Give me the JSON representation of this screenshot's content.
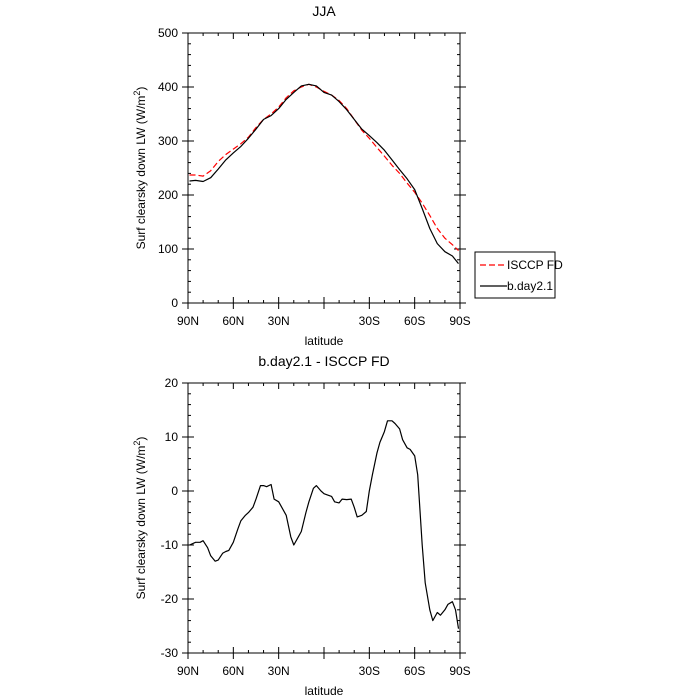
{
  "chart_data": [
    {
      "type": "line",
      "title": "JJA",
      "xlabel": "latitude",
      "ylabel_main": "Surf clearsky down LW (W/m",
      "ylabel_sup": "2",
      "ylabel_end": ")",
      "xlim": [
        90,
        -90
      ],
      "ylim": [
        0,
        500
      ],
      "xticks": [
        {
          "value": 90,
          "label": "90N"
        },
        {
          "value": 60,
          "label": "60N"
        },
        {
          "value": 30,
          "label": "30N"
        },
        {
          "value": 0,
          "label": ""
        },
        {
          "value": -30,
          "label": "30S"
        },
        {
          "value": -60,
          "label": "60S"
        },
        {
          "value": -90,
          "label": "90S"
        }
      ],
      "yticks": [
        {
          "value": 0,
          "label": "0"
        },
        {
          "value": 100,
          "label": "100"
        },
        {
          "value": 200,
          "label": "200"
        },
        {
          "value": 300,
          "label": "300"
        },
        {
          "value": 400,
          "label": "400"
        },
        {
          "value": 500,
          "label": "500"
        }
      ],
      "legend": {
        "position": "right",
        "entries": [
          {
            "label": "ISCCP FD",
            "color": "#ff0000",
            "dash": "dashed"
          },
          {
            "label": "b.day2.1",
            "color": "#000000",
            "dash": "solid"
          }
        ]
      },
      "series": [
        {
          "name": "ISCCP FD",
          "color": "#ff0000",
          "dash": "dashed",
          "x": [
            89,
            85,
            80,
            75,
            70,
            65,
            60,
            55,
            50,
            45,
            40,
            35,
            30,
            25,
            20,
            15,
            10,
            5,
            0,
            -5,
            -10,
            -15,
            -20,
            -25,
            -30,
            -35,
            -40,
            -45,
            -50,
            -55,
            -60,
            -65,
            -70,
            -75,
            -80,
            -85,
            -89
          ],
          "y": [
            237,
            237,
            235,
            245,
            262,
            275,
            285,
            295,
            307,
            325,
            340,
            350,
            363,
            380,
            393,
            400,
            405,
            400,
            392,
            385,
            375,
            360,
            340,
            320,
            305,
            288,
            272,
            255,
            240,
            222,
            205,
            185,
            162,
            138,
            120,
            108,
            97
          ]
        },
        {
          "name": "b.day2.1",
          "color": "#000000",
          "dash": "solid",
          "x": [
            89,
            85,
            80,
            75,
            70,
            65,
            60,
            55,
            50,
            45,
            40,
            35,
            30,
            25,
            20,
            15,
            10,
            5,
            0,
            -5,
            -10,
            -15,
            -20,
            -25,
            -30,
            -35,
            -40,
            -45,
            -50,
            -55,
            -60,
            -65,
            -70,
            -75,
            -80,
            -85,
            -89
          ],
          "y": [
            226,
            227,
            225,
            232,
            248,
            265,
            278,
            290,
            305,
            322,
            340,
            347,
            360,
            377,
            390,
            402,
            405,
            402,
            390,
            385,
            373,
            358,
            340,
            322,
            310,
            297,
            283,
            265,
            247,
            230,
            210,
            175,
            138,
            110,
            95,
            87,
            73
          ]
        }
      ]
    },
    {
      "type": "line",
      "title": "b.day2.1 - ISCCP FD",
      "xlabel": "latitude",
      "ylabel_main": "Surf clearsky down LW (W/m",
      "ylabel_sup": "2",
      "ylabel_end": ")",
      "xlim": [
        90,
        -90
      ],
      "ylim": [
        -30,
        20
      ],
      "xticks": [
        {
          "value": 90,
          "label": "90N"
        },
        {
          "value": 60,
          "label": "60N"
        },
        {
          "value": 30,
          "label": "30N"
        },
        {
          "value": 0,
          "label": ""
        },
        {
          "value": -30,
          "label": "30S"
        },
        {
          "value": -60,
          "label": "60S"
        },
        {
          "value": -90,
          "label": "90S"
        }
      ],
      "yticks": [
        {
          "value": -30,
          "label": "-30"
        },
        {
          "value": -20,
          "label": "-20"
        },
        {
          "value": -10,
          "label": "-10"
        },
        {
          "value": 0,
          "label": "0"
        },
        {
          "value": 10,
          "label": "10"
        },
        {
          "value": 20,
          "label": "20"
        }
      ],
      "series": [
        {
          "name": "",
          "color": "#000000",
          "dash": "solid",
          "x": [
            89,
            85,
            82,
            80,
            77,
            75,
            72,
            70,
            67,
            65,
            63,
            60,
            57,
            55,
            52,
            50,
            47,
            45,
            42,
            40,
            38,
            35,
            33,
            30,
            28,
            25,
            22,
            20,
            17,
            15,
            12,
            10,
            7,
            5,
            2,
            0,
            -2,
            -5,
            -7,
            -10,
            -12,
            -15,
            -18,
            -20,
            -22,
            -25,
            -28,
            -30,
            -32,
            -35,
            -37,
            -40,
            -42,
            -45,
            -47,
            -50,
            -52,
            -55,
            -57,
            -60,
            -62,
            -65,
            -67,
            -70,
            -72,
            -75,
            -77,
            -80,
            -82,
            -85,
            -87,
            -89
          ],
          "y": [
            -10,
            -9.5,
            -9.5,
            -9.2,
            -10.5,
            -12,
            -13,
            -12.8,
            -11.5,
            -11.2,
            -11,
            -9.5,
            -7,
            -5.5,
            -4.5,
            -4,
            -3,
            -1.5,
            1,
            1,
            0.8,
            1.2,
            -1.5,
            -2,
            -3,
            -4.5,
            -8.5,
            -10,
            -8.5,
            -7.5,
            -4,
            -2,
            0.5,
            1,
            0,
            -0.5,
            -0.7,
            -1,
            -2,
            -2.2,
            -1.5,
            -1.6,
            -1.5,
            -3,
            -4.8,
            -4.5,
            -3.8,
            0,
            3,
            7,
            9,
            11,
            13,
            13,
            12.5,
            11.5,
            9.5,
            8,
            7.7,
            6.5,
            3,
            -10,
            -17,
            -22,
            -24,
            -22.5,
            -23,
            -22,
            -21,
            -20.5,
            -22,
            -25.5
          ]
        }
      ]
    }
  ]
}
